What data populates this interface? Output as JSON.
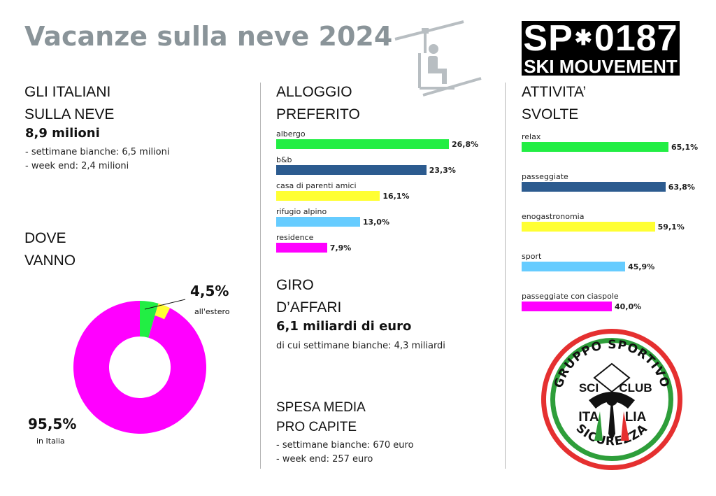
{
  "title": "Vacanze sulla neve 2024",
  "logo": {
    "top_left": "SP",
    "top_right": "0187",
    "bottom": "SKI MOUVEMENT"
  },
  "italiani": {
    "heading_1": "GLI ITALIANI",
    "heading_2": "SULLA NEVE",
    "total": "8,9 milioni",
    "line_1": "- settimane bianche: 6,5 milioni",
    "line_2": "- week end: 2,4 milioni"
  },
  "dove": {
    "heading_1": "DOVE",
    "heading_2": "VANNO",
    "estero_value": "4,5%",
    "estero_label": "all'estero",
    "italia_value": "95,5%",
    "italia_label": "in Italia"
  },
  "alloggio": {
    "heading_1": "ALLOGGIO",
    "heading_2": "PREFERITO"
  },
  "giro": {
    "heading_1": "GIRO",
    "heading_2": "D’AFFARI",
    "total": "6,1 miliardi di euro",
    "note": "di cui settimane bianche:  4,3 miliardi"
  },
  "spesa": {
    "heading_1": "SPESA MEDIA",
    "heading_2": "PRO CAPITE",
    "line_1": "- settimane bianche: 670 euro",
    "line_2": "- week end:  257 euro"
  },
  "attivita": {
    "heading_1": "ATTIVITA’",
    "heading_2": "SVOLTE"
  },
  "badge": {
    "top_text": "GRUPPO SPORTIVO",
    "sci": "SCI",
    "club": "CLUB",
    "ita": "ITA",
    "lia": "LIA",
    "bottom_text": "SICUREZZA"
  },
  "colors": {
    "green": "#22ee44",
    "blue": "#2c5b8f",
    "yellow": "#ffff33",
    "lightblue": "#66ccff",
    "magenta": "#ff00ff"
  },
  "chart_data": [
    {
      "type": "bar",
      "categories": [
        "albergo",
        "b&b",
        "casa di parenti amici",
        "rifugio alpino",
        "residence"
      ],
      "values": [
        26.8,
        23.3,
        16.1,
        13.0,
        7.9
      ],
      "value_labels": [
        "26,8%",
        "23,3%",
        "16,1%",
        "13,0%",
        "7,9%"
      ],
      "colors": [
        "#22ee44",
        "#2c5b8f",
        "#ffff33",
        "#66ccff",
        "#ff00ff"
      ]
    },
    {
      "type": "bar",
      "categories": [
        "relax",
        "passeggiate",
        "enogastronomia",
        "sport",
        "passeggiate con ciaspole"
      ],
      "values": [
        65.1,
        63.8,
        59.1,
        45.9,
        40.0
      ],
      "value_labels": [
        "65,1%",
        "63,8%",
        "59,1%",
        "45,9%",
        "40,0%"
      ],
      "colors": [
        "#22ee44",
        "#2c5b8f",
        "#ffff33",
        "#66ccff",
        "#ff00ff"
      ]
    },
    {
      "type": "pie",
      "categories": [
        "all'estero",
        "in Italia"
      ],
      "values": [
        4.5,
        95.5
      ],
      "colors": [
        "#22ee44",
        "#ff00ff"
      ]
    }
  ]
}
